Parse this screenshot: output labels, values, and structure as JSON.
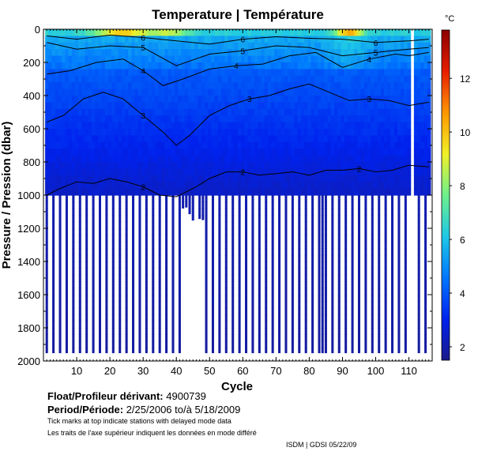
{
  "chart_data": {
    "type": "heatmap",
    "title": "Temperature | Température",
    "xlabel": "Cycle",
    "ylabel": "Pressure / Pression (dbar)",
    "xlim": [
      0,
      117
    ],
    "ylim": [
      0,
      2000
    ],
    "x_ticks": [
      10,
      20,
      30,
      40,
      50,
      60,
      70,
      80,
      90,
      100,
      110
    ],
    "y_ticks": [
      0,
      200,
      400,
      600,
      800,
      1000,
      1200,
      1400,
      1600,
      1800,
      2000
    ],
    "colorbar": {
      "unit": "°C",
      "range": [
        1.5,
        13.8
      ],
      "ticks": [
        2,
        4,
        6,
        8,
        10,
        12
      ],
      "colors": [
        "#1a1a8c",
        "#0022ee",
        "#0078ff",
        "#1ec8e6",
        "#6ef08c",
        "#f0f028",
        "#ff9600",
        "#e61e00",
        "#8c0000"
      ]
    },
    "contour_levels": [
      2,
      3,
      4,
      5,
      6
    ],
    "contours": [
      {
        "level": 6,
        "cycles": [
          1,
          10,
          20,
          30,
          40,
          50,
          60,
          70,
          80,
          90,
          100,
          110,
          116
        ],
        "pressure": [
          40,
          60,
          35,
          50,
          70,
          90,
          60,
          45,
          55,
          60,
          80,
          70,
          60
        ]
      },
      {
        "level": 5,
        "cycles": [
          1,
          10,
          20,
          30,
          40,
          50,
          60,
          70,
          80,
          90,
          100,
          110,
          116
        ],
        "pressure": [
          80,
          120,
          100,
          110,
          220,
          150,
          130,
          100,
          110,
          160,
          140,
          120,
          110
        ]
      },
      {
        "level": 4,
        "cycles": [
          1,
          8,
          16,
          24,
          30,
          36,
          42,
          50,
          58,
          66,
          74,
          82,
          90,
          98,
          106,
          110,
          116
        ],
        "pressure": [
          270,
          250,
          200,
          180,
          250,
          340,
          300,
          240,
          220,
          210,
          160,
          140,
          230,
          180,
          150,
          160,
          140
        ]
      },
      {
        "level": 3,
        "cycles": [
          1,
          6,
          12,
          18,
          24,
          30,
          36,
          40,
          44,
          50,
          56,
          62,
          68,
          74,
          80,
          86,
          92,
          98,
          104,
          110,
          116
        ],
        "pressure": [
          560,
          520,
          420,
          380,
          420,
          520,
          620,
          700,
          640,
          520,
          460,
          420,
          400,
          360,
          330,
          380,
          430,
          420,
          430,
          460,
          440
        ]
      },
      {
        "level": 2,
        "cycles": [
          1,
          5,
          10,
          15,
          20,
          25,
          30,
          35,
          40,
          43,
          46,
          50,
          55,
          60,
          65,
          70,
          75,
          80,
          85,
          90,
          95,
          100,
          105,
          110,
          116
        ],
        "pressure": [
          1000,
          960,
          920,
          930,
          900,
          920,
          950,
          1000,
          1010,
          980,
          950,
          900,
          860,
          860,
          880,
          870,
          860,
          880,
          850,
          850,
          840,
          860,
          850,
          820,
          830
        ]
      }
    ],
    "profiles": {
      "shallow_profiles_cycles": [
        42,
        43,
        44,
        45,
        47,
        48
      ],
      "missing_cycle": 111,
      "typical_max_pressure": 1000,
      "long_profile_max_pressure": 1950
    }
  },
  "float": {
    "label": "Float/Profileur dérivant:",
    "id": "4900739"
  },
  "period": {
    "label": "Period/Période:",
    "start": "2/25/2006",
    "to": "to/à",
    "end": "5/18/2009"
  },
  "notes": {
    "en": "Tick marks at top indicate stations with delayed mode data",
    "fr": "Les traits de l'axe supérieur indiquent les données en mode différé"
  },
  "footer": "ISDM | GDSI  05/22/09"
}
